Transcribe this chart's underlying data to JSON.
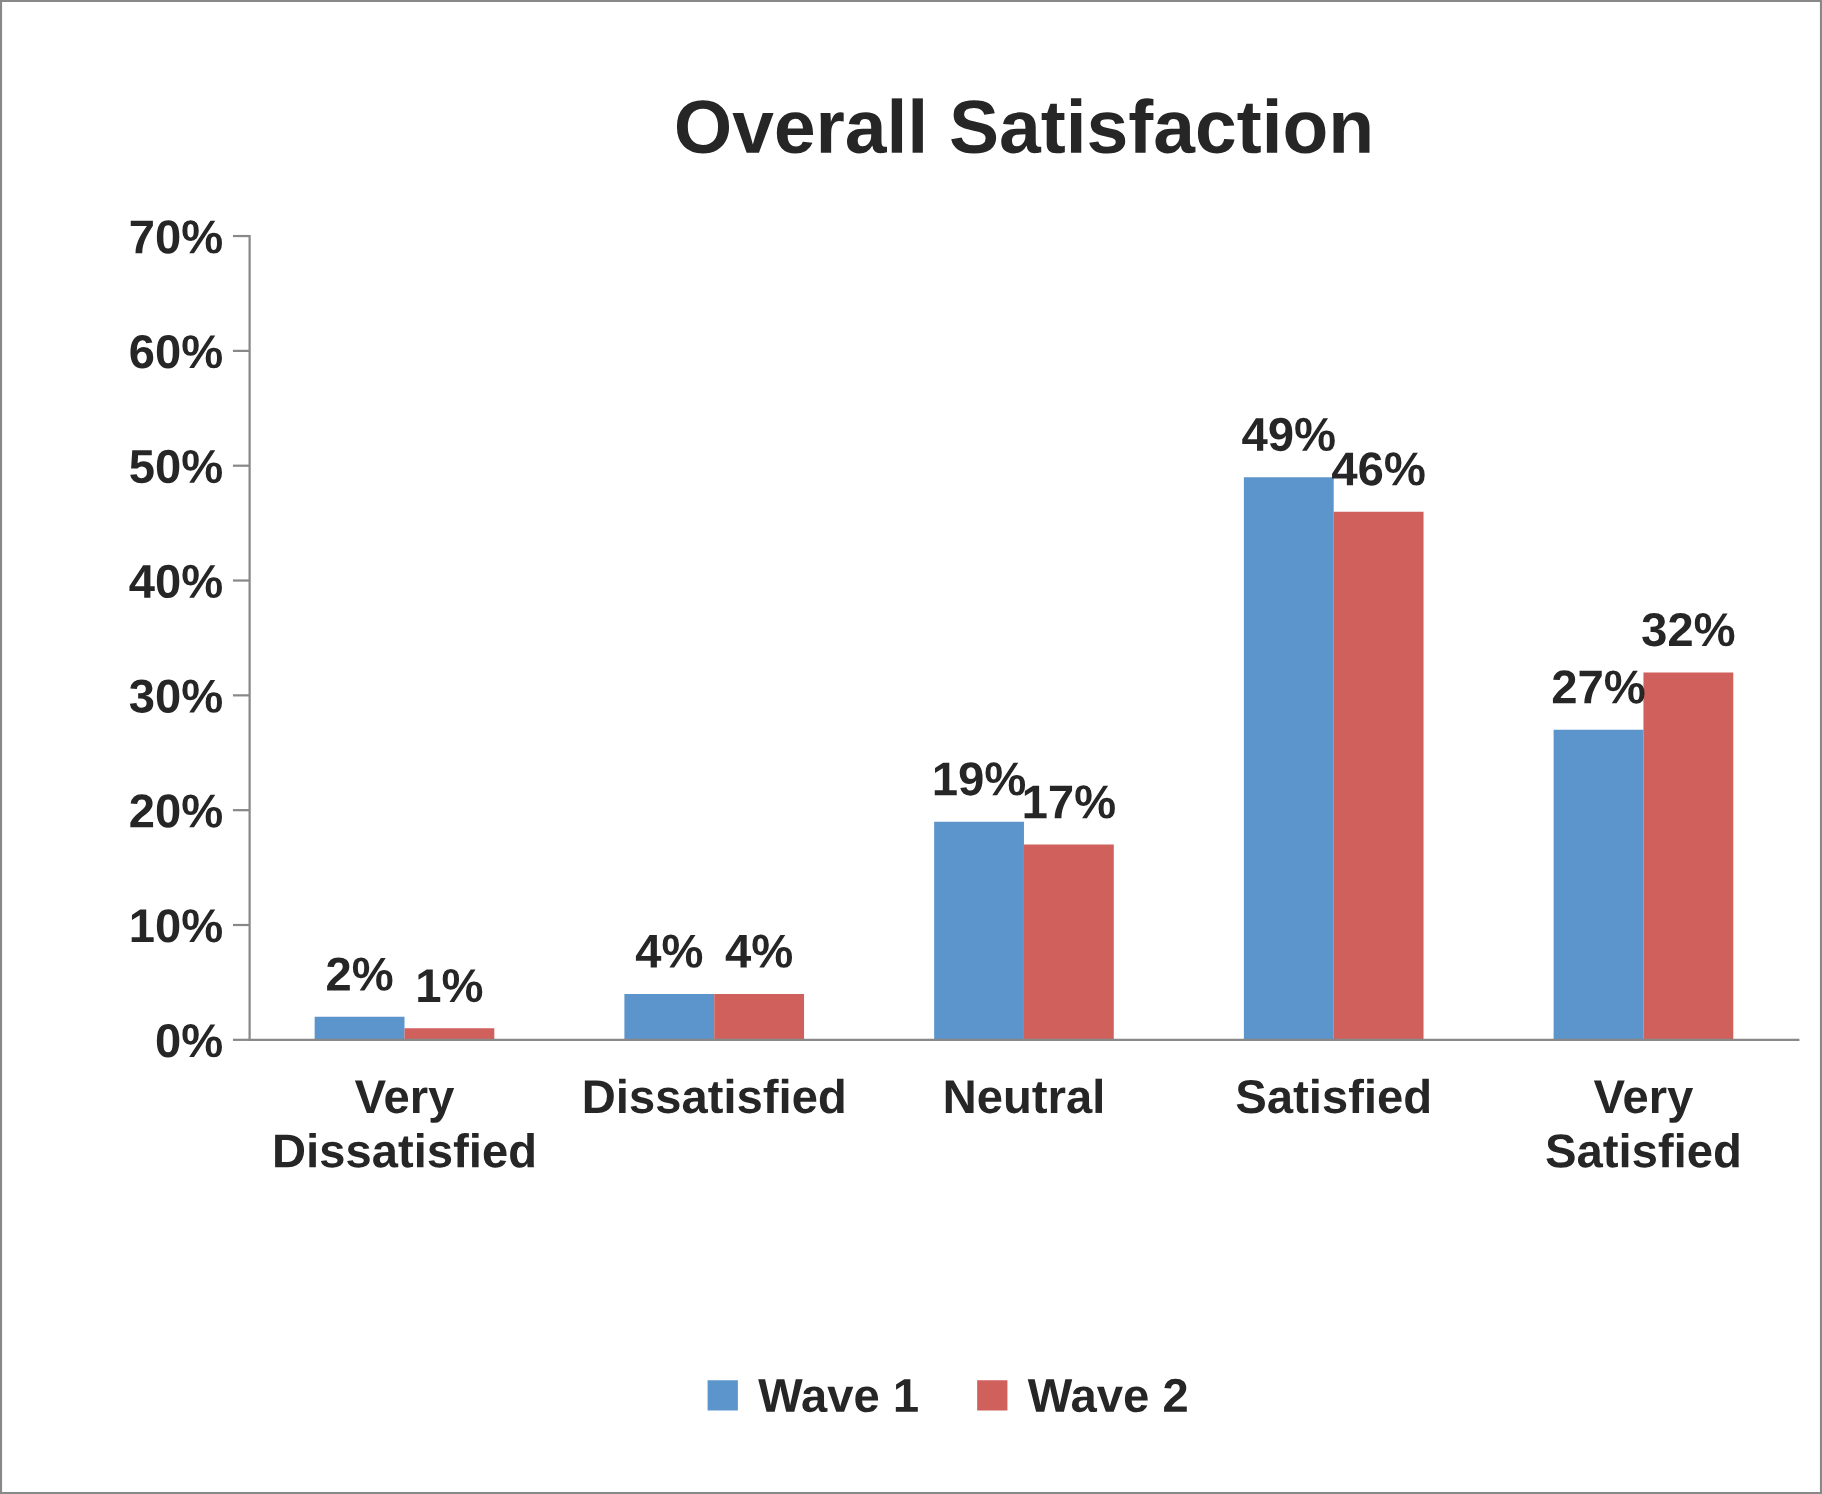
{
  "chart_data": {
    "type": "bar",
    "title": "Overall Satisfaction",
    "categories": [
      "Very\nDissatisfied",
      "Dissatisfied",
      "Neutral",
      "Satisfied",
      "Very\nSatisfied"
    ],
    "series": [
      {
        "name": "Wave 1",
        "color": "#5b95cc",
        "values": [
          2,
          4,
          19,
          49,
          27
        ],
        "value_labels": [
          "2%",
          "4%",
          "19%",
          "49%",
          "27%"
        ]
      },
      {
        "name": "Wave 2",
        "color": "#cf605b",
        "values": [
          1,
          4,
          17,
          46,
          32
        ],
        "value_labels": [
          "1%",
          "4%",
          "17%",
          "46%",
          "32%"
        ]
      }
    ],
    "ylim": [
      0,
      70
    ],
    "yticks": [
      {
        "value": 0,
        "label": "0%"
      },
      {
        "value": 10,
        "label": "10%"
      },
      {
        "value": 20,
        "label": "20%"
      },
      {
        "value": 30,
        "label": "30%"
      },
      {
        "value": 40,
        "label": "40%"
      },
      {
        "value": 50,
        "label": "50%"
      },
      {
        "value": 60,
        "label": "60%"
      },
      {
        "value": 70,
        "label": "70%"
      }
    ],
    "legend": "bottom",
    "grid": false
  }
}
